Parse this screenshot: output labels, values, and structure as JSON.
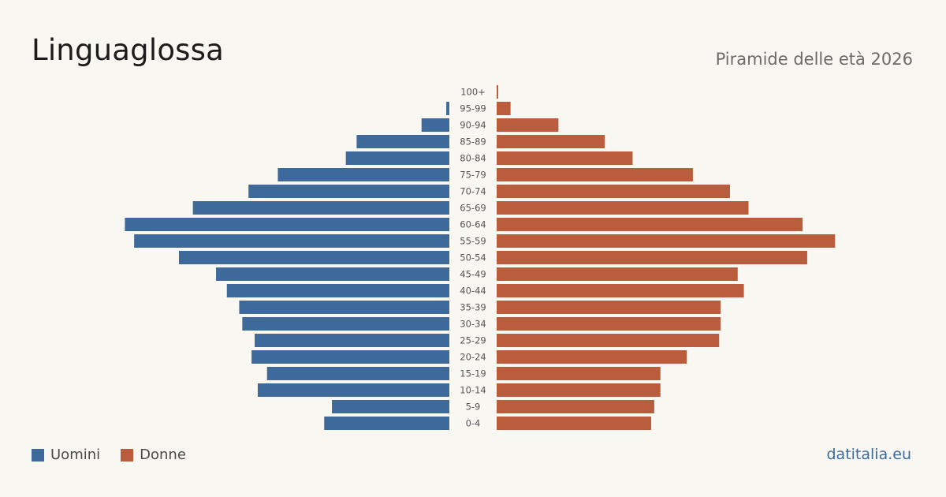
{
  "header": {
    "title": "Linguaglossa",
    "subtitle": "Piramide delle età 2026"
  },
  "legend": {
    "men_label": "Uomini",
    "women_label": "Donne"
  },
  "source": "datitalia.eu",
  "colors": {
    "men": "#3d6a9b",
    "women": "#b95d3c",
    "background": "#f9f7f2"
  },
  "chart_data": {
    "type": "bar",
    "orientation": "horizontal-pyramid",
    "categories": [
      "100+",
      "95-99",
      "90-94",
      "85-89",
      "80-84",
      "75-79",
      "70-74",
      "65-69",
      "60-64",
      "55-59",
      "50-54",
      "45-49",
      "40-44",
      "35-39",
      "30-34",
      "25-29",
      "20-24",
      "15-19",
      "10-14",
      "5-9",
      "0-4"
    ],
    "series": [
      {
        "name": "Uomini",
        "values": [
          0,
          2,
          18,
          60,
          67,
          111,
          130,
          166,
          210,
          204,
          175,
          151,
          144,
          136,
          134,
          126,
          128,
          118,
          124,
          76,
          81
        ]
      },
      {
        "name": "Donne",
        "values": [
          1,
          9,
          40,
          70,
          88,
          127,
          151,
          163,
          198,
          219,
          201,
          156,
          160,
          145,
          145,
          144,
          123,
          106,
          106,
          102,
          100
        ]
      }
    ],
    "grid": false,
    "legend_position": "bottom-left"
  }
}
